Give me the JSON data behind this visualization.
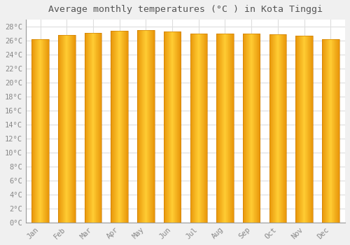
{
  "title": "Average monthly temperatures (°C ) in Kota Tinggi",
  "months": [
    "Jan",
    "Feb",
    "Mar",
    "Apr",
    "May",
    "Jun",
    "Jul",
    "Aug",
    "Sep",
    "Oct",
    "Nov",
    "Dec"
  ],
  "values": [
    26.2,
    26.8,
    27.1,
    27.4,
    27.5,
    27.3,
    27.0,
    27.0,
    27.0,
    26.9,
    26.7,
    26.2
  ],
  "ylim": [
    0,
    29
  ],
  "yticks": [
    0,
    2,
    4,
    6,
    8,
    10,
    12,
    14,
    16,
    18,
    20,
    22,
    24,
    26,
    28
  ],
  "bar_color_edge": "#E8960A",
  "bar_color_center": "#FFCC33",
  "bg_color": "#F0F0F0",
  "plot_bg_color": "#FFFFFF",
  "grid_color": "#DDDDDD",
  "title_fontsize": 9.5,
  "tick_fontsize": 7.5,
  "bar_width": 0.65
}
